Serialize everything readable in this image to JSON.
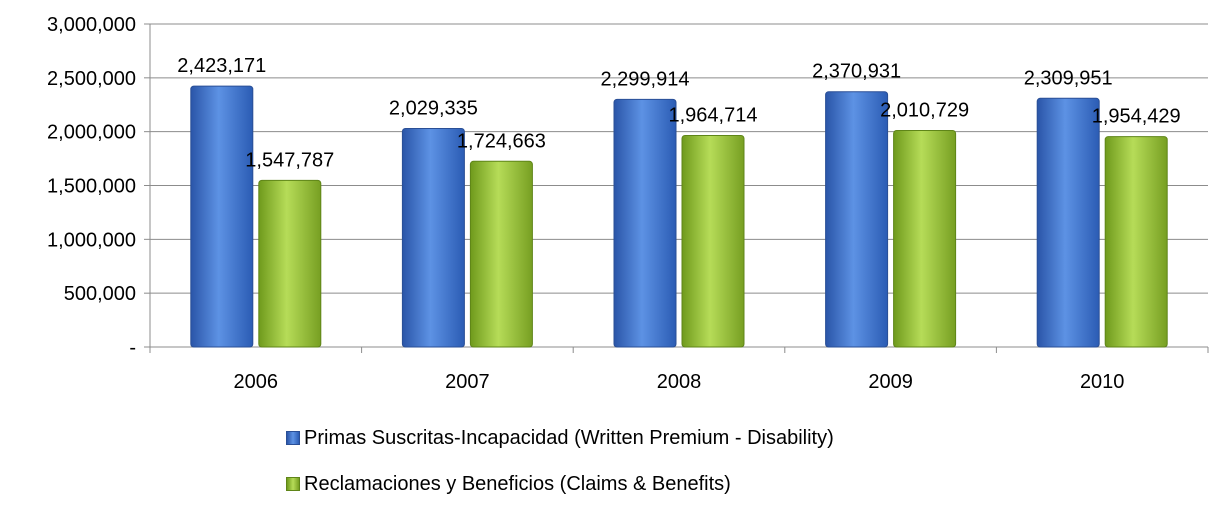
{
  "chart_data": {
    "type": "bar",
    "categories": [
      "2006",
      "2007",
      "2008",
      "2009",
      "2010"
    ],
    "series": [
      {
        "name": "Primas Suscritas-Incapacidad (Written Premium - Disability)",
        "values": [
          2423171,
          2029335,
          2299914,
          2370931,
          2309951
        ],
        "labels": [
          "2,423,171",
          "2,029,335",
          "2,299,914",
          "2,370,931",
          "2,309,951"
        ],
        "color": "#4a7fd0"
      },
      {
        "name": "Reclamaciones y Beneficios (Claims & Benefits)",
        "values": [
          1547787,
          1724663,
          1964714,
          2010729,
          1954429
        ],
        "labels": [
          "1,547,787",
          "1,724,663",
          "1,964,714",
          "2,010,729",
          "1,954,429"
        ],
        "color": "#9cc43c"
      }
    ],
    "ylim": [
      0,
      3000000
    ],
    "yticks": [
      0,
      500000,
      1000000,
      1500000,
      2000000,
      2500000,
      3000000
    ],
    "ytick_labels": [
      "-",
      "500,000",
      "1,000,000",
      "1,500,000",
      "2,000,000",
      "2,500,000",
      "3,000,000"
    ],
    "grid": true,
    "legend_position": "bottom"
  }
}
